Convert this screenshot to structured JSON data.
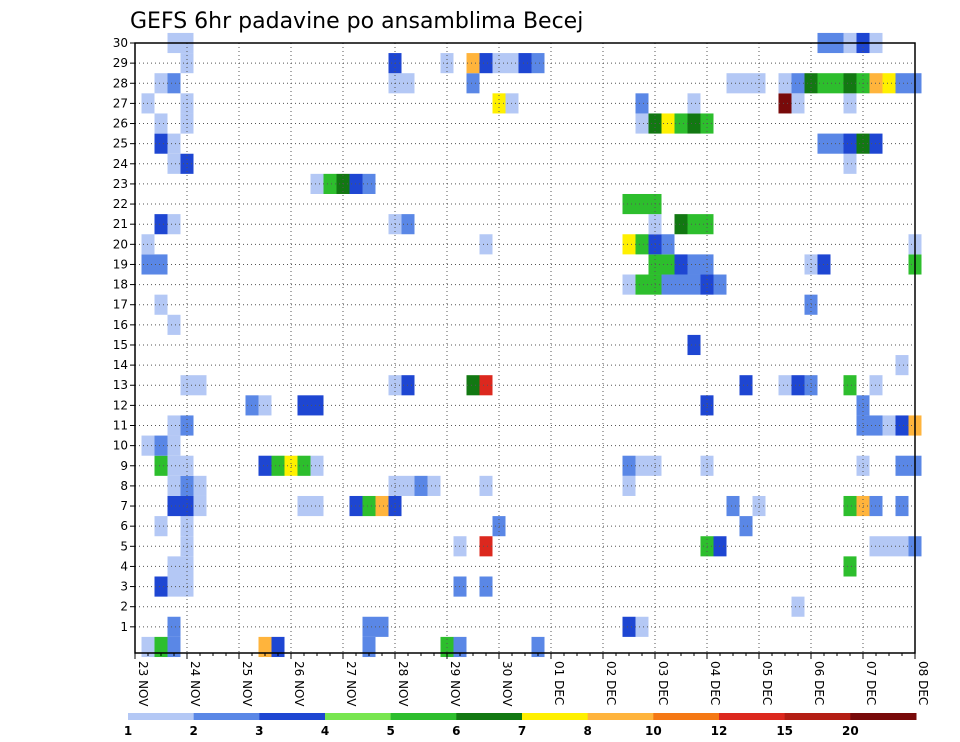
{
  "chart_data": {
    "type": "heatmap",
    "title": "GEFS 6hr padavine po ansamblima Becej",
    "xlabel": "",
    "ylabel": "",
    "x_tick_labels": [
      "23 NOV",
      "24 NOV",
      "25 NOV",
      "26 NOV",
      "27 NOV",
      "28 NOV",
      "29 NOV",
      "30 NOV",
      "01 DEC",
      "02 DEC",
      "03 DEC",
      "04 DEC",
      "05 DEC",
      "06 DEC",
      "07 DEC",
      "08 DEC"
    ],
    "y_tick_labels": [
      "1",
      "2",
      "3",
      "4",
      "5",
      "6",
      "7",
      "8",
      "9",
      "10",
      "11",
      "12",
      "13",
      "14",
      "15",
      "16",
      "17",
      "18",
      "19",
      "20",
      "21",
      "22",
      "23",
      "24",
      "25",
      "26",
      "27",
      "28",
      "29",
      "30"
    ],
    "xlim": [
      0,
      60
    ],
    "ylim": [
      0,
      30
    ],
    "x_unit": "6-hour steps since 23 NOV 00Z",
    "grid": true,
    "colorbar": {
      "labels": [
        "1",
        "2",
        "3",
        "4",
        "5",
        "6",
        "7",
        "8",
        "10",
        "12",
        "15",
        "20"
      ],
      "levels": [
        1,
        2,
        3,
        4,
        5,
        6,
        7,
        8,
        10,
        12,
        15,
        20
      ],
      "colors": [
        "#b4c8f5",
        "#5a87e6",
        "#1e46d2",
        "#78e650",
        "#2dbe2d",
        "#127812",
        "#fff000",
        "#ffb43c",
        "#f57814",
        "#dc281e",
        "#b41e14",
        "#780a0a"
      ]
    },
    "cells": [
      [
        1,
        0,
        1
      ],
      [
        2,
        0,
        5
      ],
      [
        3,
        0,
        2
      ],
      [
        10,
        0,
        8
      ],
      [
        11,
        0,
        3
      ],
      [
        18,
        0,
        2
      ],
      [
        24,
        0,
        5
      ],
      [
        25,
        0,
        2
      ],
      [
        31,
        0,
        2
      ],
      [
        3,
        1,
        2
      ],
      [
        18,
        1,
        2
      ],
      [
        19,
        1,
        2
      ],
      [
        38,
        1,
        3
      ],
      [
        39,
        1,
        1
      ],
      [
        51,
        2,
        1
      ],
      [
        2,
        3,
        3
      ],
      [
        3,
        3,
        1
      ],
      [
        4,
        3,
        1
      ],
      [
        25,
        3,
        2
      ],
      [
        27,
        3,
        2
      ],
      [
        3,
        4,
        1
      ],
      [
        4,
        4,
        1
      ],
      [
        55,
        4,
        5
      ],
      [
        4,
        5,
        1
      ],
      [
        25,
        5,
        1
      ],
      [
        27,
        5,
        10
      ],
      [
        44,
        5,
        5
      ],
      [
        45,
        5,
        3
      ],
      [
        57,
        5,
        1
      ],
      [
        58,
        5,
        1
      ],
      [
        59,
        5,
        1
      ],
      [
        60,
        5,
        2
      ],
      [
        2,
        6,
        1
      ],
      [
        4,
        6,
        1
      ],
      [
        28,
        6,
        2
      ],
      [
        47,
        6,
        2
      ],
      [
        4,
        7,
        1
      ],
      [
        3,
        7,
        3
      ],
      [
        4,
        7,
        3
      ],
      [
        5,
        7,
        1
      ],
      [
        13,
        7,
        1
      ],
      [
        14,
        7,
        1
      ],
      [
        17,
        7,
        3
      ],
      [
        18,
        7,
        5
      ],
      [
        19,
        7,
        8
      ],
      [
        20,
        7,
        3
      ],
      [
        46,
        7,
        2
      ],
      [
        48,
        7,
        1
      ],
      [
        55,
        7,
        5
      ],
      [
        56,
        7,
        8
      ],
      [
        57,
        7,
        2
      ],
      [
        59,
        7,
        2
      ],
      [
        3,
        8,
        1
      ],
      [
        4,
        8,
        2
      ],
      [
        5,
        8,
        1
      ],
      [
        20,
        8,
        1
      ],
      [
        21,
        8,
        1
      ],
      [
        22,
        8,
        2
      ],
      [
        23,
        8,
        1
      ],
      [
        27,
        8,
        1
      ],
      [
        38,
        8,
        1
      ],
      [
        2,
        9,
        5
      ],
      [
        3,
        9,
        1
      ],
      [
        4,
        9,
        1
      ],
      [
        10,
        9,
        3
      ],
      [
        11,
        9,
        5
      ],
      [
        12,
        9,
        7
      ],
      [
        13,
        9,
        5
      ],
      [
        14,
        9,
        1
      ],
      [
        38,
        9,
        2
      ],
      [
        39,
        9,
        1
      ],
      [
        40,
        9,
        1
      ],
      [
        44,
        9,
        1
      ],
      [
        56,
        9,
        1
      ],
      [
        59,
        9,
        2
      ],
      [
        60,
        9,
        2
      ],
      [
        1,
        10,
        1
      ],
      [
        2,
        10,
        2
      ],
      [
        3,
        10,
        1
      ],
      [
        3,
        11,
        1
      ],
      [
        4,
        11,
        2
      ],
      [
        56,
        11,
        2
      ],
      [
        57,
        11,
        2
      ],
      [
        58,
        11,
        1
      ],
      [
        59,
        11,
        3
      ],
      [
        60,
        11,
        8
      ],
      [
        9,
        12,
        2
      ],
      [
        10,
        12,
        1
      ],
      [
        13,
        12,
        3
      ],
      [
        14,
        12,
        3
      ],
      [
        44,
        12,
        3
      ],
      [
        56,
        12,
        2
      ],
      [
        4,
        13,
        1
      ],
      [
        5,
        13,
        1
      ],
      [
        20,
        13,
        1
      ],
      [
        21,
        13,
        3
      ],
      [
        26,
        13,
        6
      ],
      [
        27,
        13,
        10
      ],
      [
        47,
        13,
        3
      ],
      [
        50,
        13,
        1
      ],
      [
        51,
        13,
        3
      ],
      [
        52,
        13,
        2
      ],
      [
        55,
        13,
        5
      ],
      [
        57,
        13,
        1
      ],
      [
        59,
        14,
        1
      ],
      [
        43,
        15,
        3
      ],
      [
        3,
        16,
        1
      ],
      [
        2,
        17,
        1
      ],
      [
        52,
        17,
        2
      ],
      [
        38,
        18,
        1
      ],
      [
        39,
        18,
        5
      ],
      [
        40,
        18,
        5
      ],
      [
        41,
        18,
        2
      ],
      [
        42,
        18,
        2
      ],
      [
        43,
        18,
        2
      ],
      [
        44,
        18,
        3
      ],
      [
        45,
        18,
        2
      ],
      [
        40,
        19,
        5
      ],
      [
        41,
        19,
        5
      ],
      [
        42,
        19,
        3
      ],
      [
        43,
        19,
        2
      ],
      [
        44,
        19,
        2
      ],
      [
        1,
        19,
        2
      ],
      [
        2,
        19,
        2
      ],
      [
        52,
        19,
        1
      ],
      [
        53,
        19,
        3
      ],
      [
        60,
        19,
        5
      ],
      [
        1,
        20,
        1
      ],
      [
        27,
        20,
        1
      ],
      [
        38,
        20,
        7
      ],
      [
        39,
        20,
        5
      ],
      [
        40,
        20,
        3
      ],
      [
        41,
        20,
        2
      ],
      [
        60,
        20,
        1
      ],
      [
        2,
        21,
        3
      ],
      [
        3,
        21,
        1
      ],
      [
        20,
        21,
        1
      ],
      [
        21,
        21,
        2
      ],
      [
        40,
        21,
        1
      ],
      [
        42,
        21,
        6
      ],
      [
        43,
        21,
        5
      ],
      [
        44,
        21,
        5
      ],
      [
        38,
        22,
        5
      ],
      [
        39,
        22,
        5
      ],
      [
        40,
        22,
        5
      ],
      [
        14,
        23,
        1
      ],
      [
        15,
        23,
        5
      ],
      [
        16,
        23,
        6
      ],
      [
        17,
        23,
        3
      ],
      [
        18,
        23,
        2
      ],
      [
        3,
        24,
        1
      ],
      [
        4,
        24,
        3
      ],
      [
        55,
        24,
        1
      ],
      [
        2,
        25,
        3
      ],
      [
        3,
        25,
        1
      ],
      [
        53,
        25,
        2
      ],
      [
        54,
        25,
        2
      ],
      [
        55,
        25,
        3
      ],
      [
        56,
        25,
        6
      ],
      [
        57,
        25,
        3
      ],
      [
        2,
        26,
        1
      ],
      [
        4,
        26,
        1
      ],
      [
        39,
        26,
        1
      ],
      [
        40,
        26,
        6
      ],
      [
        41,
        26,
        7
      ],
      [
        42,
        26,
        5
      ],
      [
        43,
        26,
        6
      ],
      [
        44,
        26,
        5
      ],
      [
        1,
        27,
        1
      ],
      [
        4,
        27,
        1
      ],
      [
        28,
        27,
        7
      ],
      [
        29,
        27,
        1
      ],
      [
        39,
        27,
        2
      ],
      [
        43,
        27,
        1
      ],
      [
        50,
        27,
        12
      ],
      [
        51,
        27,
        1
      ],
      [
        55,
        27,
        1
      ],
      [
        2,
        28,
        1
      ],
      [
        3,
        28,
        2
      ],
      [
        20,
        28,
        1
      ],
      [
        21,
        28,
        1
      ],
      [
        26,
        28,
        2
      ],
      [
        46,
        28,
        1
      ],
      [
        47,
        28,
        1
      ],
      [
        48,
        28,
        1
      ],
      [
        50,
        28,
        1
      ],
      [
        51,
        28,
        2
      ],
      [
        52,
        28,
        6
      ],
      [
        53,
        28,
        5
      ],
      [
        54,
        28,
        5
      ],
      [
        55,
        28,
        6
      ],
      [
        56,
        28,
        5
      ],
      [
        57,
        28,
        8
      ],
      [
        58,
        28,
        7
      ],
      [
        59,
        28,
        2
      ],
      [
        60,
        28,
        2
      ],
      [
        20,
        29,
        3
      ],
      [
        24,
        29,
        1
      ],
      [
        26,
        29,
        8
      ],
      [
        27,
        29,
        3
      ],
      [
        28,
        29,
        1
      ],
      [
        29,
        29,
        1
      ],
      [
        30,
        29,
        3
      ],
      [
        31,
        29,
        2
      ],
      [
        4,
        29,
        1
      ],
      [
        3,
        30,
        1
      ],
      [
        4,
        30,
        1
      ],
      [
        53,
        30,
        2
      ],
      [
        54,
        30,
        2
      ],
      [
        55,
        30,
        1
      ],
      [
        56,
        30,
        3
      ],
      [
        57,
        30,
        1
      ]
    ]
  }
}
